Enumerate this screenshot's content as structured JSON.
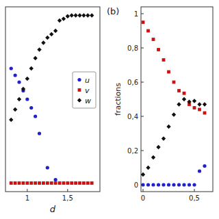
{
  "chart_data": [
    {
      "type": "scatter",
      "x_label": "d",
      "xlim": [
        0.73,
        1.9
      ],
      "ylim": [
        -0.04,
        1.04
      ],
      "xticks": [
        1.0,
        {
          "value": 1.5,
          "label": "1,5"
        }
      ],
      "yticks": [],
      "tick_labels": "x",
      "legend": "right",
      "series": [
        {
          "name": "u",
          "color": "#2222cc",
          "marker": "circle",
          "x": [
            0.8,
            0.85,
            0.9,
            0.95,
            1.0,
            1.05,
            1.1,
            1.15,
            1.25,
            1.35
          ],
          "values": [
            0.68,
            0.64,
            0.6,
            0.55,
            0.5,
            0.45,
            0.4,
            0.3,
            0.1,
            0.03
          ]
        },
        {
          "name": "v",
          "color": "#cc1111",
          "marker": "square",
          "x": [
            0.8,
            0.85,
            0.9,
            0.95,
            1.0,
            1.05,
            1.1,
            1.15,
            1.2,
            1.25,
            1.3,
            1.35,
            1.4,
            1.45,
            1.5,
            1.55,
            1.6,
            1.65,
            1.7,
            1.75,
            1.8
          ],
          "values": [
            0.01,
            0.01,
            0.01,
            0.01,
            0.01,
            0.01,
            0.01,
            0.01,
            0.01,
            0.01,
            0.01,
            0.01,
            0.01,
            0.01,
            0.01,
            0.01,
            0.01,
            0.01,
            0.01,
            0.01,
            0.01
          ]
        },
        {
          "name": "w",
          "color": "#111111",
          "marker": "diamond",
          "x": [
            0.8,
            0.85,
            0.9,
            0.95,
            1.0,
            1.05,
            1.1,
            1.15,
            1.2,
            1.25,
            1.3,
            1.35,
            1.4,
            1.45,
            1.5,
            1.55,
            1.6,
            1.65,
            1.7,
            1.75,
            1.8
          ],
          "values": [
            0.38,
            0.44,
            0.5,
            0.56,
            0.62,
            0.68,
            0.74,
            0.79,
            0.83,
            0.86,
            0.88,
            0.9,
            0.96,
            0.97,
            0.985,
            0.99,
            0.99,
            0.99,
            0.99,
            0.99,
            0.99
          ]
        }
      ]
    },
    {
      "type": "scatter",
      "title": "(b)",
      "y_label": "fractions",
      "xlim": [
        -0.02,
        0.68
      ],
      "ylim": [
        -0.04,
        1.04
      ],
      "xticks": [
        0.0,
        {
          "value": 0.5,
          "label": "0,5"
        }
      ],
      "yticks": [
        0.0,
        {
          "value": 0.2,
          "label": "0,2"
        },
        {
          "value": 0.4,
          "label": "0,4"
        },
        {
          "value": 0.6,
          "label": "0,6"
        },
        {
          "value": 0.8,
          "label": "0,8"
        },
        1.0
      ],
      "series": [
        {
          "color": "#2222cc",
          "marker": "circle",
          "x": [
            0.0,
            0.05,
            0.1,
            0.15,
            0.2,
            0.25,
            0.3,
            0.35,
            0.4,
            0.45,
            0.5,
            0.55,
            0.6
          ],
          "values": [
            0.0,
            0.0,
            0.0,
            0.0,
            0.0,
            0.0,
            0.0,
            0.0,
            0.0,
            0.0,
            0.0,
            0.08,
            0.11
          ]
        },
        {
          "color": "#cc1111",
          "marker": "square",
          "x": [
            0.0,
            0.05,
            0.1,
            0.15,
            0.2,
            0.25,
            0.3,
            0.35,
            0.4,
            0.45,
            0.5,
            0.55,
            0.6
          ],
          "values": [
            0.95,
            0.9,
            0.85,
            0.79,
            0.73,
            0.66,
            0.6,
            0.55,
            0.535,
            0.47,
            0.45,
            0.44,
            0.42
          ]
        },
        {
          "color": "#111111",
          "marker": "diamond",
          "x": [
            0.0,
            0.05,
            0.1,
            0.15,
            0.2,
            0.25,
            0.3,
            0.35,
            0.4,
            0.45,
            0.5,
            0.55,
            0.6
          ],
          "values": [
            0.06,
            0.1,
            0.16,
            0.22,
            0.27,
            0.34,
            0.41,
            0.47,
            0.5,
            0.485,
            0.49,
            0.47,
            0.47
          ]
        }
      ]
    }
  ]
}
